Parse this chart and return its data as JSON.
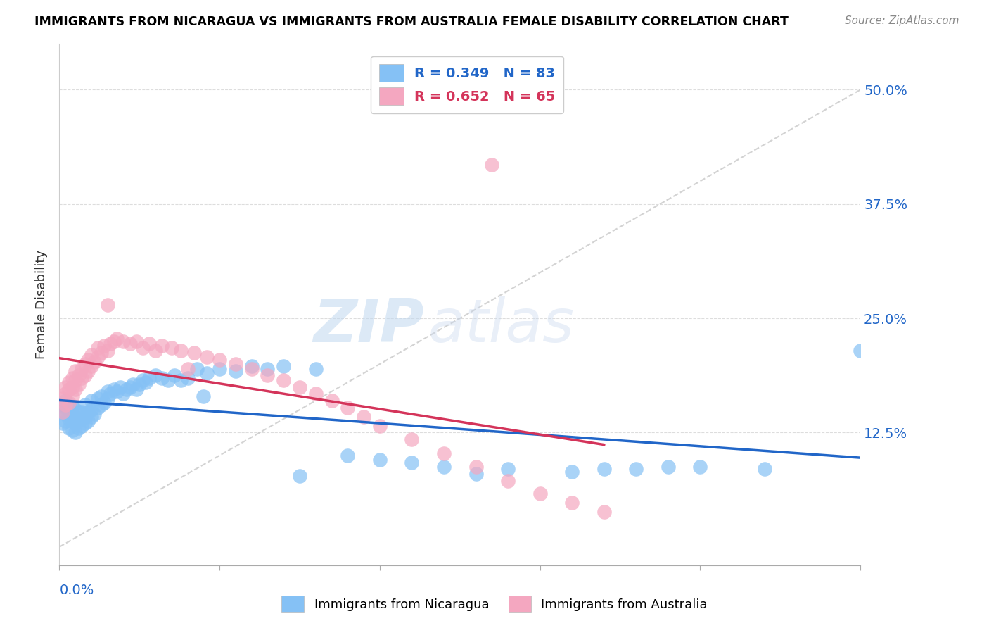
{
  "title": "IMMIGRANTS FROM NICARAGUA VS IMMIGRANTS FROM AUSTRALIA FEMALE DISABILITY CORRELATION CHART",
  "source": "Source: ZipAtlas.com",
  "ylabel": "Female Disability",
  "color_nicaragua": "#85C1F5",
  "color_australia": "#F4A7C0",
  "line_color_nicaragua": "#2166C8",
  "line_color_australia": "#D4345A",
  "diag_color": "#C8C8C8",
  "watermark_zip": "ZIP",
  "watermark_atlas": "atlas",
  "xlim": [
    0.0,
    0.25
  ],
  "ylim": [
    -0.02,
    0.55
  ],
  "yticks": [
    0.125,
    0.25,
    0.375,
    0.5
  ],
  "nic_x": [
    0.001,
    0.001,
    0.001,
    0.002,
    0.002,
    0.002,
    0.002,
    0.003,
    0.003,
    0.003,
    0.003,
    0.004,
    0.004,
    0.004,
    0.004,
    0.005,
    0.005,
    0.005,
    0.005,
    0.006,
    0.006,
    0.006,
    0.007,
    0.007,
    0.007,
    0.008,
    0.008,
    0.008,
    0.009,
    0.009,
    0.01,
    0.01,
    0.01,
    0.011,
    0.012,
    0.012,
    0.013,
    0.013,
    0.014,
    0.015,
    0.015,
    0.016,
    0.017,
    0.018,
    0.019,
    0.02,
    0.021,
    0.022,
    0.023,
    0.024,
    0.025,
    0.026,
    0.027,
    0.028,
    0.03,
    0.032,
    0.034,
    0.036,
    0.038,
    0.04,
    0.043,
    0.046,
    0.05,
    0.055,
    0.06,
    0.065,
    0.07,
    0.08,
    0.09,
    0.1,
    0.11,
    0.12,
    0.14,
    0.16,
    0.18,
    0.2,
    0.22,
    0.25,
    0.17,
    0.19,
    0.13,
    0.075,
    0.045
  ],
  "nic_y": [
    0.135,
    0.148,
    0.155,
    0.138,
    0.145,
    0.152,
    0.16,
    0.13,
    0.14,
    0.148,
    0.155,
    0.128,
    0.138,
    0.145,
    0.153,
    0.125,
    0.135,
    0.142,
    0.15,
    0.13,
    0.14,
    0.148,
    0.132,
    0.14,
    0.148,
    0.135,
    0.142,
    0.155,
    0.138,
    0.148,
    0.142,
    0.15,
    0.16,
    0.145,
    0.152,
    0.162,
    0.155,
    0.165,
    0.158,
    0.162,
    0.17,
    0.168,
    0.172,
    0.17,
    0.175,
    0.168,
    0.172,
    0.175,
    0.178,
    0.172,
    0.178,
    0.182,
    0.18,
    0.185,
    0.188,
    0.185,
    0.182,
    0.188,
    0.182,
    0.185,
    0.195,
    0.19,
    0.195,
    0.192,
    0.198,
    0.195,
    0.198,
    0.195,
    0.1,
    0.095,
    0.092,
    0.088,
    0.085,
    0.082,
    0.085,
    0.088,
    0.085,
    0.215,
    0.085,
    0.088,
    0.08,
    0.078,
    0.165
  ],
  "aus_x": [
    0.001,
    0.001,
    0.002,
    0.002,
    0.002,
    0.003,
    0.003,
    0.003,
    0.004,
    0.004,
    0.004,
    0.005,
    0.005,
    0.005,
    0.006,
    0.006,
    0.007,
    0.007,
    0.008,
    0.008,
    0.009,
    0.009,
    0.01,
    0.01,
    0.011,
    0.012,
    0.012,
    0.013,
    0.014,
    0.015,
    0.016,
    0.017,
    0.018,
    0.02,
    0.022,
    0.024,
    0.026,
    0.028,
    0.03,
    0.032,
    0.035,
    0.038,
    0.042,
    0.046,
    0.05,
    0.055,
    0.06,
    0.065,
    0.07,
    0.075,
    0.08,
    0.085,
    0.09,
    0.095,
    0.1,
    0.11,
    0.12,
    0.13,
    0.14,
    0.15,
    0.16,
    0.17,
    0.135,
    0.04,
    0.015
  ],
  "aus_y": [
    0.148,
    0.162,
    0.155,
    0.168,
    0.175,
    0.158,
    0.172,
    0.18,
    0.165,
    0.175,
    0.185,
    0.172,
    0.182,
    0.192,
    0.178,
    0.188,
    0.185,
    0.195,
    0.188,
    0.2,
    0.192,
    0.205,
    0.198,
    0.21,
    0.202,
    0.208,
    0.218,
    0.212,
    0.22,
    0.215,
    0.222,
    0.225,
    0.228,
    0.225,
    0.222,
    0.225,
    0.218,
    0.222,
    0.215,
    0.22,
    0.218,
    0.215,
    0.212,
    0.208,
    0.205,
    0.2,
    0.195,
    0.188,
    0.182,
    0.175,
    0.168,
    0.16,
    0.152,
    0.142,
    0.132,
    0.118,
    0.102,
    0.088,
    0.072,
    0.058,
    0.048,
    0.038,
    0.418,
    0.195,
    0.265
  ]
}
